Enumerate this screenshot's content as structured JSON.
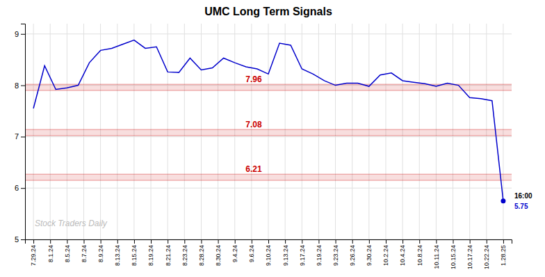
{
  "chart_data": {
    "type": "line",
    "title": "UMC Long Term Signals",
    "series": [
      {
        "color": "#0000cc",
        "x": [
          0,
          0.6667,
          1.3333,
          2,
          2.6667,
          3.3333,
          4,
          4.6667,
          5.3333,
          6,
          6.6667,
          7.3333,
          8,
          8.6667,
          9.3333,
          10,
          10.6667,
          11.3333,
          12,
          12.6667,
          13.3333,
          14,
          14.6667,
          15.3333,
          16,
          16.6667,
          17.3333,
          18,
          18.6667,
          19.3333,
          20,
          20.6667,
          21.3333,
          22,
          22.6667,
          23.3333,
          24,
          24.6667,
          25.3333,
          26,
          26.6667,
          27.3333,
          28
        ],
        "values": [
          7.55,
          8.38,
          7.92,
          7.95,
          8.0,
          8.44,
          8.68,
          8.72,
          8.8,
          8.88,
          8.72,
          8.75,
          8.26,
          8.25,
          8.53,
          8.3,
          8.34,
          8.53,
          8.44,
          8.36,
          8.32,
          8.22,
          8.82,
          8.78,
          8.32,
          8.22,
          8.09,
          8.0,
          8.04,
          8.04,
          7.98,
          8.2,
          8.24,
          8.09,
          8.06,
          8.03,
          7.98,
          8.04,
          8.0,
          7.76,
          7.74,
          7.7,
          5.75
        ]
      }
    ],
    "xlim": [
      -0.5,
      28.5
    ],
    "xticks": [
      {
        "value": 0,
        "label": "7.29.24"
      },
      {
        "value": 1,
        "label": "8.1.24"
      },
      {
        "value": 2,
        "label": "8.5.24"
      },
      {
        "value": 3,
        "label": "8.7.24"
      },
      {
        "value": 4,
        "label": "8.9.24"
      },
      {
        "value": 5,
        "label": "8.13.24"
      },
      {
        "value": 6,
        "label": "8.15.24"
      },
      {
        "value": 7,
        "label": "8.19.24"
      },
      {
        "value": 8,
        "label": "8.21.24"
      },
      {
        "value": 9,
        "label": "8.23.24"
      },
      {
        "value": 10,
        "label": "8.28.24"
      },
      {
        "value": 11,
        "label": "8.30.24"
      },
      {
        "value": 12,
        "label": "9.4.24"
      },
      {
        "value": 13,
        "label": "9.6.24"
      },
      {
        "value": 14,
        "label": "9.10.24"
      },
      {
        "value": 15,
        "label": "9.13.24"
      },
      {
        "value": 16,
        "label": "9.17.24"
      },
      {
        "value": 17,
        "label": "9.19.24"
      },
      {
        "value": 18,
        "label": "9.23.24"
      },
      {
        "value": 19,
        "label": "9.26.24"
      },
      {
        "value": 20,
        "label": "9.30.24"
      },
      {
        "value": 21,
        "label": "10.2.24"
      },
      {
        "value": 22,
        "label": "10.4.24"
      },
      {
        "value": 23,
        "label": "10.8.24"
      },
      {
        "value": 24,
        "label": "10.11.24"
      },
      {
        "value": 25,
        "label": "10.15.24"
      },
      {
        "value": 26,
        "label": "10.17.24"
      },
      {
        "value": 27,
        "label": "10.22.24"
      },
      {
        "value": 28,
        "label": "1.28.25"
      }
    ],
    "ylim": [
      5.0,
      9.2
    ],
    "yticks": [
      5,
      6,
      7,
      8,
      9
    ],
    "grid": true,
    "hlines": [
      {
        "y": 7.96,
        "band": [
          7.9,
          8.02
        ],
        "label": "7.96",
        "color": "#cc0000"
      },
      {
        "y": 7.08,
        "band": [
          7.02,
          7.14
        ],
        "label": "7.08",
        "color": "#cc0000"
      },
      {
        "y": 6.21,
        "band": [
          6.15,
          6.27
        ],
        "label": "6.21",
        "color": "#cc0000"
      }
    ],
    "annotations": [
      {
        "x": 28,
        "y": 5.75,
        "label": "16:00"
      },
      {
        "x": 28,
        "y": 5.75,
        "label": "5.75",
        "color": "#0000cc",
        "marker": "circle"
      }
    ],
    "watermark": "Stock Traders Daily"
  }
}
